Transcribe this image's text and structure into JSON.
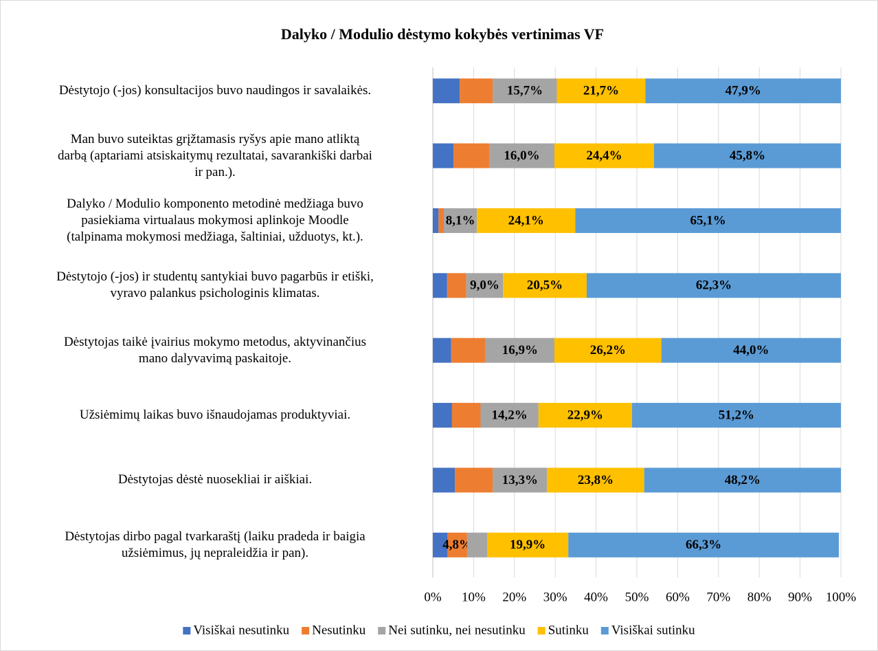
{
  "chart_data": {
    "type": "stacked_barh",
    "title": "Dalyko / Modulio dėstymo kokybės vertinimas VF",
    "categories": [
      "Dėstytojo (-jos) konsultacijos buvo naudingos ir savalaikės.",
      "Man buvo suteiktas grįžtamasis ryšys apie mano atliktą\ndarbą (aptariami atsiskaitymų rezultatai, savarankiški darbai\nir pan.).",
      "Dalyko / Modulio komponento metodinė medžiaga buvo\npasiekiama virtualaus mokymosi aplinkoje Moodle\n(talpinama mokymosi medžiaga, šaltiniai, užduotys, kt.).",
      "Dėstytojo (-jos) ir studentų santykiai buvo pagarbūs ir etiški,\nvyravo palankus psichologinis klimatas.",
      "Dėstytojas taikė įvairius mokymo metodus, aktyvinančius\nmano dalyvavimą paskaitoje.",
      "Užsiėmimų laikas buvo išnaudojamas produktyviai.",
      "Dėstytojas dėstė nuosekliai ir aiškiai.",
      "Dėstytojas dirbo pagal tvarkaraštį (laiku pradeda ir baigia\nužsiėmimus, jų nepraleidžia ir pan)."
    ],
    "series": [
      {
        "name": "Visiškai nesutinku",
        "color": "#4472c4",
        "values": [
          6.6,
          5.1,
          1.4,
          3.5,
          4.5,
          4.7,
          5.4,
          3.6
        ],
        "value_labels": [
          null,
          null,
          null,
          null,
          null,
          null,
          null,
          null
        ]
      },
      {
        "name": "Nesutinku",
        "color": "#ed7d31",
        "values": [
          8.1,
          8.7,
          1.3,
          4.7,
          8.4,
          7.0,
          9.3,
          4.8
        ],
        "value_labels": [
          null,
          null,
          null,
          null,
          null,
          null,
          null,
          "4,8%"
        ]
      },
      {
        "name": "Nei sutinku, nei nesutinku",
        "color": "#a5a5a5",
        "values": [
          15.7,
          16.0,
          8.1,
          9.0,
          16.9,
          14.2,
          13.3,
          4.9
        ],
        "value_labels": [
          "15,7%",
          "16,0%",
          "8,1%",
          "9,0%",
          "16,9%",
          "14,2%",
          "13,3%",
          null
        ]
      },
      {
        "name": "Sutinku",
        "color": "#ffc000",
        "values": [
          21.7,
          24.4,
          24.1,
          20.5,
          26.2,
          22.9,
          23.8,
          19.9
        ],
        "value_labels": [
          "21,7%",
          "24,4%",
          "24,1%",
          "20,5%",
          "26,2%",
          "22,9%",
          "23,8%",
          "19,9%"
        ]
      },
      {
        "name": "Visiškai sutinku",
        "color": "#5b9bd5",
        "values": [
          47.9,
          45.8,
          65.1,
          62.3,
          44.0,
          51.2,
          48.2,
          66.3
        ],
        "value_labels": [
          "47,9%",
          "45,8%",
          "65,1%",
          "62,3%",
          "44,0%",
          "51,2%",
          "48,2%",
          "66,3%"
        ]
      }
    ],
    "xlim": [
      0,
      100
    ],
    "xticks": [
      {
        "value": 0,
        "label": "0%"
      },
      {
        "value": 10,
        "label": "10%"
      },
      {
        "value": 20,
        "label": "20%"
      },
      {
        "value": 30,
        "label": "30%"
      },
      {
        "value": 40,
        "label": "40%"
      },
      {
        "value": 50,
        "label": "50%"
      },
      {
        "value": 60,
        "label": "60%"
      },
      {
        "value": 70,
        "label": "70%"
      },
      {
        "value": 80,
        "label": "80%"
      },
      {
        "value": 90,
        "label": "90%"
      },
      {
        "value": 100,
        "label": "100%"
      }
    ],
    "grid": true,
    "legend": "bottom"
  }
}
